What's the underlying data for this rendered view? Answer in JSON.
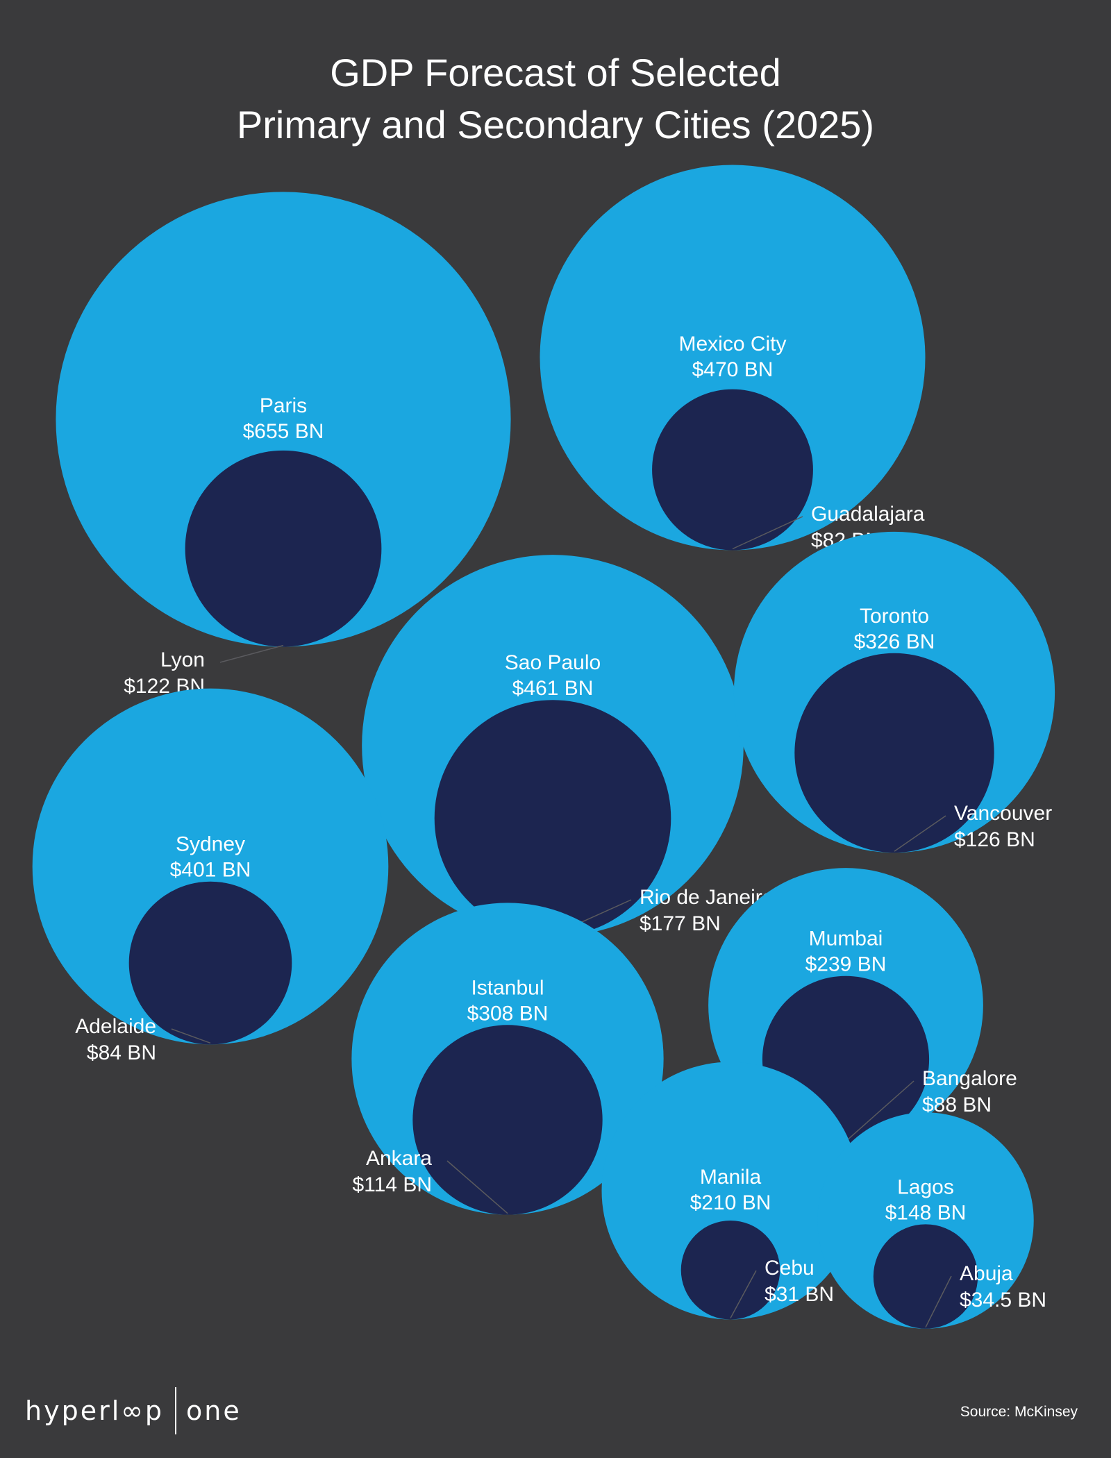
{
  "title_line_1": "GDP Forecast of Selected",
  "title_line_2": "Primary and Secondary Cities (2025)",
  "colors": {
    "background": "#3a3a3c",
    "primary_city": "#1ba7e0",
    "secondary_city": "#1c2550",
    "text": "#ffffff",
    "leader_line": "#5a5a5e"
  },
  "chart_data": {
    "type": "bubble",
    "unit": "$ BN",
    "pairs": [
      {
        "primary": {
          "name": "Paris",
          "label": "$655 BN",
          "value": 655
        },
        "secondary": {
          "name": "Lyon",
          "label": "$122 BN",
          "value": 122
        }
      },
      {
        "primary": {
          "name": "Mexico City",
          "label": "$470 BN",
          "value": 470
        },
        "secondary": {
          "name": "Guadalajara",
          "label": "$82 BN",
          "value": 82
        }
      },
      {
        "primary": {
          "name": "Sao Paulo",
          "label": "$461 BN",
          "value": 461
        },
        "secondary": {
          "name": "Rio de Janeiro",
          "label": "$177 BN",
          "value": 177
        }
      },
      {
        "primary": {
          "name": "Toronto",
          "label": "$326 BN",
          "value": 326
        },
        "secondary": {
          "name": "Vancouver",
          "label": "$126 BN",
          "value": 126
        }
      },
      {
        "primary": {
          "name": "Sydney",
          "label": "$401 BN",
          "value": 401
        },
        "secondary": {
          "name": "Adelaide",
          "label": "$84 BN",
          "value": 84
        }
      },
      {
        "primary": {
          "name": "Istanbul",
          "label": "$308 BN",
          "value": 308
        },
        "secondary": {
          "name": "Ankara",
          "label": "$114 BN",
          "value": 114
        }
      },
      {
        "primary": {
          "name": "Mumbai",
          "label": "$239 BN",
          "value": 239
        },
        "secondary": {
          "name": "Bangalore",
          "label": "$88 BN",
          "value": 88
        }
      },
      {
        "primary": {
          "name": "Manila",
          "label": "$210 BN",
          "value": 210
        },
        "secondary": {
          "name": "Cebu",
          "label": "$31 BN",
          "value": 31
        }
      },
      {
        "primary": {
          "name": "Lagos",
          "label": "$148 BN",
          "value": 148
        },
        "secondary": {
          "name": "Abuja",
          "label": "$34.5 BN",
          "value": 34.5
        }
      }
    ]
  },
  "footer": {
    "logo_left": "hyperl∞p",
    "logo_right": "one",
    "source": "Source: McKinsey"
  }
}
